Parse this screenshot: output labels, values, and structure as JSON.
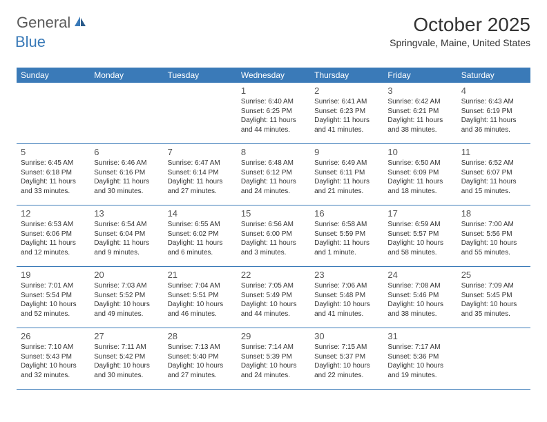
{
  "logo": {
    "text_general": "General",
    "text_blue": "Blue"
  },
  "title": {
    "month_year": "October 2025",
    "location": "Springvale, Maine, United States"
  },
  "colors": {
    "header_bg": "#3a7ab8",
    "header_text": "#ffffff",
    "border": "#3a7ab8",
    "text": "#333333",
    "logo_gray": "#5a5a5a",
    "logo_blue": "#3a7ab8"
  },
  "day_names": [
    "Sunday",
    "Monday",
    "Tuesday",
    "Wednesday",
    "Thursday",
    "Friday",
    "Saturday"
  ],
  "weeks": [
    [
      {
        "day": "",
        "info": ""
      },
      {
        "day": "",
        "info": ""
      },
      {
        "day": "",
        "info": ""
      },
      {
        "day": "1",
        "info": "Sunrise: 6:40 AM\nSunset: 6:25 PM\nDaylight: 11 hours and 44 minutes."
      },
      {
        "day": "2",
        "info": "Sunrise: 6:41 AM\nSunset: 6:23 PM\nDaylight: 11 hours and 41 minutes."
      },
      {
        "day": "3",
        "info": "Sunrise: 6:42 AM\nSunset: 6:21 PM\nDaylight: 11 hours and 38 minutes."
      },
      {
        "day": "4",
        "info": "Sunrise: 6:43 AM\nSunset: 6:19 PM\nDaylight: 11 hours and 36 minutes."
      }
    ],
    [
      {
        "day": "5",
        "info": "Sunrise: 6:45 AM\nSunset: 6:18 PM\nDaylight: 11 hours and 33 minutes."
      },
      {
        "day": "6",
        "info": "Sunrise: 6:46 AM\nSunset: 6:16 PM\nDaylight: 11 hours and 30 minutes."
      },
      {
        "day": "7",
        "info": "Sunrise: 6:47 AM\nSunset: 6:14 PM\nDaylight: 11 hours and 27 minutes."
      },
      {
        "day": "8",
        "info": "Sunrise: 6:48 AM\nSunset: 6:12 PM\nDaylight: 11 hours and 24 minutes."
      },
      {
        "day": "9",
        "info": "Sunrise: 6:49 AM\nSunset: 6:11 PM\nDaylight: 11 hours and 21 minutes."
      },
      {
        "day": "10",
        "info": "Sunrise: 6:50 AM\nSunset: 6:09 PM\nDaylight: 11 hours and 18 minutes."
      },
      {
        "day": "11",
        "info": "Sunrise: 6:52 AM\nSunset: 6:07 PM\nDaylight: 11 hours and 15 minutes."
      }
    ],
    [
      {
        "day": "12",
        "info": "Sunrise: 6:53 AM\nSunset: 6:06 PM\nDaylight: 11 hours and 12 minutes."
      },
      {
        "day": "13",
        "info": "Sunrise: 6:54 AM\nSunset: 6:04 PM\nDaylight: 11 hours and 9 minutes."
      },
      {
        "day": "14",
        "info": "Sunrise: 6:55 AM\nSunset: 6:02 PM\nDaylight: 11 hours and 6 minutes."
      },
      {
        "day": "15",
        "info": "Sunrise: 6:56 AM\nSunset: 6:00 PM\nDaylight: 11 hours and 3 minutes."
      },
      {
        "day": "16",
        "info": "Sunrise: 6:58 AM\nSunset: 5:59 PM\nDaylight: 11 hours and 1 minute."
      },
      {
        "day": "17",
        "info": "Sunrise: 6:59 AM\nSunset: 5:57 PM\nDaylight: 10 hours and 58 minutes."
      },
      {
        "day": "18",
        "info": "Sunrise: 7:00 AM\nSunset: 5:56 PM\nDaylight: 10 hours and 55 minutes."
      }
    ],
    [
      {
        "day": "19",
        "info": "Sunrise: 7:01 AM\nSunset: 5:54 PM\nDaylight: 10 hours and 52 minutes."
      },
      {
        "day": "20",
        "info": "Sunrise: 7:03 AM\nSunset: 5:52 PM\nDaylight: 10 hours and 49 minutes."
      },
      {
        "day": "21",
        "info": "Sunrise: 7:04 AM\nSunset: 5:51 PM\nDaylight: 10 hours and 46 minutes."
      },
      {
        "day": "22",
        "info": "Sunrise: 7:05 AM\nSunset: 5:49 PM\nDaylight: 10 hours and 44 minutes."
      },
      {
        "day": "23",
        "info": "Sunrise: 7:06 AM\nSunset: 5:48 PM\nDaylight: 10 hours and 41 minutes."
      },
      {
        "day": "24",
        "info": "Sunrise: 7:08 AM\nSunset: 5:46 PM\nDaylight: 10 hours and 38 minutes."
      },
      {
        "day": "25",
        "info": "Sunrise: 7:09 AM\nSunset: 5:45 PM\nDaylight: 10 hours and 35 minutes."
      }
    ],
    [
      {
        "day": "26",
        "info": "Sunrise: 7:10 AM\nSunset: 5:43 PM\nDaylight: 10 hours and 32 minutes."
      },
      {
        "day": "27",
        "info": "Sunrise: 7:11 AM\nSunset: 5:42 PM\nDaylight: 10 hours and 30 minutes."
      },
      {
        "day": "28",
        "info": "Sunrise: 7:13 AM\nSunset: 5:40 PM\nDaylight: 10 hours and 27 minutes."
      },
      {
        "day": "29",
        "info": "Sunrise: 7:14 AM\nSunset: 5:39 PM\nDaylight: 10 hours and 24 minutes."
      },
      {
        "day": "30",
        "info": "Sunrise: 7:15 AM\nSunset: 5:37 PM\nDaylight: 10 hours and 22 minutes."
      },
      {
        "day": "31",
        "info": "Sunrise: 7:17 AM\nSunset: 5:36 PM\nDaylight: 10 hours and 19 minutes."
      },
      {
        "day": "",
        "info": ""
      }
    ]
  ]
}
